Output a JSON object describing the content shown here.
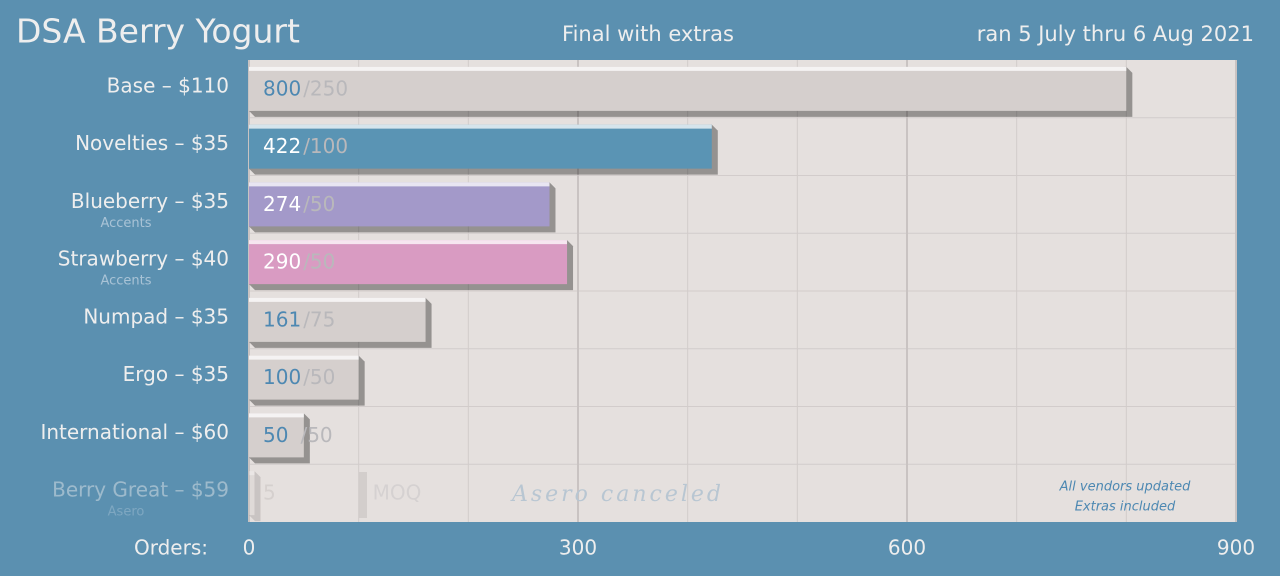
{
  "chart_data": {
    "type": "bar",
    "orientation": "horizontal",
    "title": "DSA Berry Yogurt",
    "subtitle": "Final with extras",
    "date_note": "ran 5 July thru 6 Aug 2021",
    "x_label": "Orders:",
    "categories": [
      "Base – $110",
      "Novelties – $35",
      "Blueberry – $35",
      "Strawberry – $40",
      "Numpad – $35",
      "Ergo – $35",
      "International – $60",
      "Berry Great – $59"
    ],
    "sublabels": [
      null,
      null,
      "Accents",
      "Accents",
      null,
      null,
      null,
      "Asero"
    ],
    "values": [
      800,
      422,
      274,
      290,
      161,
      100,
      50,
      5
    ],
    "moq_labels": [
      "/250",
      "/100",
      "/50",
      "/50",
      "/75",
      "/50",
      "/50",
      "MOQ"
    ],
    "colors": [
      "#d5cfcd",
      "#5a94b4",
      "#a399c9",
      "#d99bc2",
      "#d5cfcd",
      "#d5cfcd",
      "#d5cfcd",
      "#d5cfcd"
    ],
    "label_colors": [
      "#4d88b2",
      "#ffffff",
      "#ffffff",
      "#ffffff",
      "#4d88b2",
      "#4d88b2",
      "#4d88b2",
      "#b9b3b2"
    ],
    "dimmed": [
      false,
      false,
      false,
      false,
      false,
      false,
      false,
      true
    ],
    "xlim": [
      0,
      900
    ],
    "xticks": [
      0,
      300,
      600,
      900
    ],
    "minor_gridlines": [
      100,
      200,
      400,
      500,
      700,
      800
    ],
    "annotations": [
      "Asero canceled",
      "All vendors updated",
      "Extras included"
    ]
  }
}
